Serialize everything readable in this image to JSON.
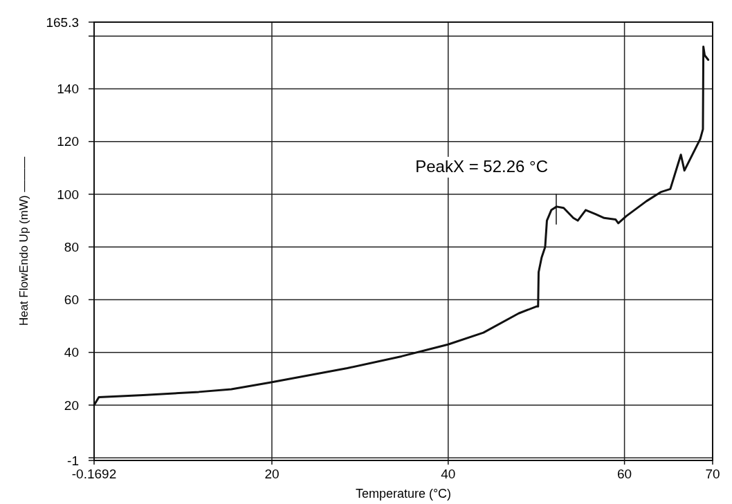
{
  "chart_data": {
    "type": "line",
    "xlabel": "Temperature (°C)",
    "ylabel": "Heat FlowEndo Up (mW) ———",
    "xlim": [
      -0.1692,
      70
    ],
    "xticks": [
      -0.1692,
      20,
      40,
      60,
      70
    ],
    "ylim": [
      -1,
      165.3
    ],
    "yticks": [
      -1,
      {
        "value": 0,
        "label": null
      },
      20,
      40,
      60,
      80,
      100,
      120,
      140,
      {
        "value": 160,
        "label": null
      },
      165.3
    ],
    "grid": true,
    "marker": "none",
    "line_style": "solid",
    "annotations": [
      {
        "text": "PeakX = 52.26 °C",
        "x": 52.26,
        "y": 95.3
      }
    ],
    "series": [
      {
        "color": "#111111",
        "x": [
          -0.1692,
          0.37,
          5.4,
          11.7,
          15.4,
          19.8,
          28.56,
          34.7,
          39.98,
          44,
          48,
          50,
          50.2,
          50.26,
          50.6,
          51,
          51.2,
          51.7,
          52.3,
          53.1,
          54.2,
          54.7,
          55.6,
          56.7,
          57.7,
          59,
          59.3,
          60.2,
          62.5,
          64.1,
          65.2,
          66.4,
          66.8,
          68.6,
          68.9,
          68.95,
          69.1,
          69.5
        ],
        "values": [
          20,
          23,
          23.8,
          25,
          26,
          28.6,
          34,
          38.5,
          43,
          47.5,
          54.8,
          57.4,
          57.4,
          70.4,
          76,
          80,
          90,
          94,
          95.3,
          94.8,
          91,
          90,
          94,
          92.5,
          91,
          90.4,
          89,
          91.7,
          97.4,
          100.8,
          102,
          115,
          109,
          121,
          124.7,
          156,
          152.7,
          151
        ]
      }
    ]
  }
}
